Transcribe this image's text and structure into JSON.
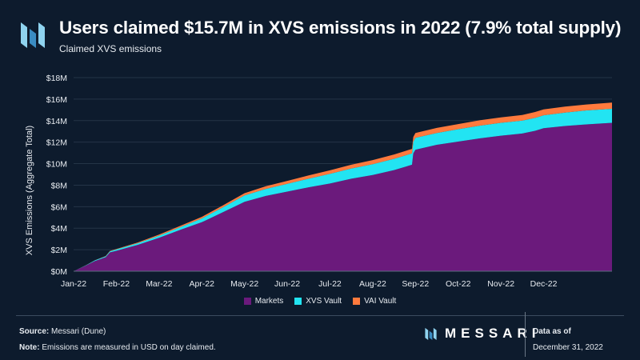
{
  "header": {
    "title": "Users claimed $15.7M in XVS emissions in 2022 (7.9% total supply)",
    "subtitle": "Claimed XVS emissions"
  },
  "footer": {
    "source_label": "Source:",
    "source_text": "Messari (Dune)",
    "note_label": "Note:",
    "note_text": "Emissions are measured in USD on day claimed.",
    "brand": "MESSARI",
    "asof_label": "Data as of",
    "asof_date": "December 31, 2022"
  },
  "colors": {
    "background": "#0d1b2d",
    "markets": "#6b1a7c",
    "xvs_vault": "#22e4f2",
    "vai_vault": "#ff7a3d",
    "gridline": "#243447",
    "logo_light": "#8fd3ef",
    "logo_dark": "#3a8cc2"
  },
  "chart_data": {
    "type": "area",
    "stacked": true,
    "title": "Users claimed $15.7M in XVS emissions in 2022 (7.9% total supply)",
    "subtitle": "Claimed XVS emissions",
    "xlabel": "",
    "ylabel": "XVS Emissions (Aggregate Total)",
    "ylim": [
      0,
      18
    ],
    "yticks": [
      0,
      2,
      4,
      6,
      8,
      10,
      12,
      14,
      16,
      18
    ],
    "ytick_labels": [
      "$0M",
      "$2M",
      "$4M",
      "$6M",
      "$8M",
      "$10M",
      "$12M",
      "$14M",
      "$16M",
      "$18M"
    ],
    "x_range": [
      0,
      13
    ],
    "xtick_labels": [
      "Jan-22",
      "Feb-22",
      "Mar-22",
      "Apr-22",
      "May-22",
      "Jun-22",
      "Jul-22",
      "Aug-22",
      "Sep-22",
      "Oct-22",
      "Nov-22",
      "Dec-22"
    ],
    "legend_position": "bottom",
    "x": [
      0,
      0.3,
      0.5,
      0.75,
      0.85,
      1,
      1.5,
      2,
      2.5,
      3,
      3.5,
      4,
      4.5,
      5,
      5.5,
      6,
      6.5,
      7,
      7.5,
      7.92,
      7.95,
      8,
      8.5,
      9,
      9.5,
      10,
      10.5,
      10.8,
      11,
      11.5,
      12,
      12.6
    ],
    "series": [
      {
        "name": "Markets",
        "values": [
          0,
          0.55,
          0.95,
          1.3,
          1.75,
          1.9,
          2.45,
          3.1,
          3.85,
          4.55,
          5.5,
          6.45,
          7.0,
          7.4,
          7.8,
          8.15,
          8.6,
          8.95,
          9.4,
          9.9,
          10.95,
          11.3,
          11.75,
          12.05,
          12.35,
          12.6,
          12.8,
          13.05,
          13.3,
          13.5,
          13.65,
          13.8
        ]
      },
      {
        "name": "XVS Vault",
        "values": [
          0,
          0.03,
          0.06,
          0.08,
          0.1,
          0.12,
          0.15,
          0.2,
          0.25,
          0.35,
          0.45,
          0.6,
          0.65,
          0.72,
          0.8,
          0.9,
          0.95,
          1.0,
          1.05,
          1.05,
          1.08,
          1.1,
          1.1,
          1.15,
          1.18,
          1.2,
          1.2,
          1.2,
          1.2,
          1.25,
          1.3,
          1.3
        ]
      },
      {
        "name": "VAI Vault",
        "values": [
          0,
          0.01,
          0.02,
          0.03,
          0.04,
          0.05,
          0.07,
          0.1,
          0.12,
          0.15,
          0.18,
          0.2,
          0.25,
          0.28,
          0.3,
          0.33,
          0.35,
          0.38,
          0.4,
          0.42,
          0.44,
          0.45,
          0.47,
          0.48,
          0.5,
          0.5,
          0.52,
          0.55,
          0.55,
          0.55,
          0.55,
          0.58
        ]
      }
    ]
  }
}
